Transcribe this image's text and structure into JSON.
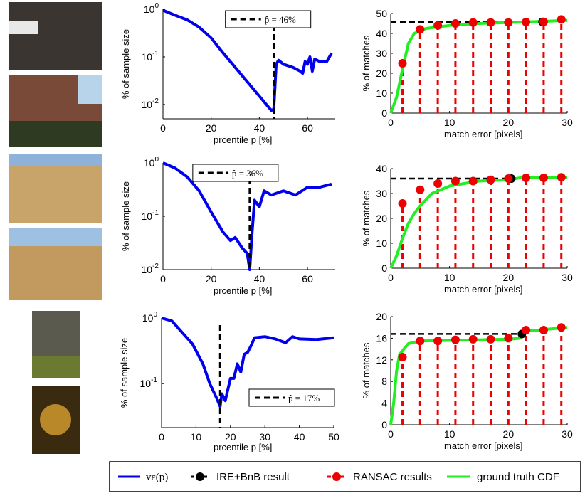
{
  "legend": {
    "items": [
      "vε(p)",
      "IRE+BnB result",
      "RANSAC results",
      "ground truth CDF"
    ]
  },
  "colors": {
    "v": "#0000ee",
    "ire": "#000000",
    "ransac": "#ee0000",
    "gt": "#22ee22"
  },
  "chart_data": [
    {
      "type": "line",
      "scale": "log",
      "xlabel": "prcentile p [%]",
      "ylabel": "% of sample size",
      "xlim": [
        0,
        71.5
      ],
      "ylim_log10": [
        -2.3,
        0
      ],
      "xticks": [
        0,
        20,
        40,
        60
      ],
      "yticks_exp": [
        0,
        -1,
        -2
      ],
      "phat": 46,
      "phat_label": "p̂ = 46%",
      "points": [
        [
          0,
          0.95
        ],
        [
          5,
          0.75
        ],
        [
          10,
          0.6
        ],
        [
          15,
          0.42
        ],
        [
          20,
          0.25
        ],
        [
          25,
          0.12
        ],
        [
          30,
          0.06
        ],
        [
          35,
          0.03
        ],
        [
          40,
          0.015
        ],
        [
          45,
          0.0075
        ],
        [
          46,
          0.008
        ],
        [
          47,
          0.07
        ],
        [
          48,
          0.085
        ],
        [
          50,
          0.07
        ],
        [
          54,
          0.06
        ],
        [
          57,
          0.05
        ],
        [
          58,
          0.045
        ],
        [
          59,
          0.08
        ],
        [
          60,
          0.07
        ],
        [
          61,
          0.1
        ],
        [
          62,
          0.05
        ],
        [
          63,
          0.09
        ],
        [
          65,
          0.08
        ],
        [
          68,
          0.08
        ],
        [
          70,
          0.12
        ]
      ]
    },
    {
      "type": "line",
      "xlabel": "match error [pixels]",
      "ylabel": "% of matches",
      "xlim": [
        0,
        30
      ],
      "ylim": [
        0,
        50
      ],
      "xticks": [
        0,
        10,
        20,
        30
      ],
      "yticks": [
        0,
        10,
        20,
        30,
        40,
        50
      ],
      "ransac_x": [
        2,
        5,
        8,
        11,
        14,
        17,
        20,
        23,
        26,
        29
      ],
      "ransac_y": [
        25,
        42,
        44,
        45,
        45.5,
        45.5,
        45.5,
        45.7,
        45.8,
        47
      ],
      "ire": [
        25.8,
        45.8
      ],
      "gt": [
        [
          0,
          0
        ],
        [
          1,
          8
        ],
        [
          2,
          22
        ],
        [
          3,
          35
        ],
        [
          4,
          40
        ],
        [
          6,
          42.5
        ],
        [
          10,
          44
        ],
        [
          15,
          45
        ],
        [
          20,
          45.5
        ],
        [
          25,
          46
        ],
        [
          30,
          46.5
        ]
      ]
    },
    {
      "type": "line",
      "scale": "log",
      "xlabel": "prcentile p [%]",
      "ylabel": "% of sample size",
      "xlim": [
        0,
        71.5
      ],
      "ylim_log10": [
        -2,
        0
      ],
      "xticks": [
        0,
        20,
        40,
        60
      ],
      "yticks_exp": [
        0,
        -1,
        -2
      ],
      "phat": 36,
      "phat_label": "p̂ = 36%",
      "points": [
        [
          0,
          1
        ],
        [
          5,
          0.8
        ],
        [
          10,
          0.55
        ],
        [
          15,
          0.3
        ],
        [
          20,
          0.12
        ],
        [
          25,
          0.05
        ],
        [
          28,
          0.035
        ],
        [
          30,
          0.04
        ],
        [
          33,
          0.025
        ],
        [
          35,
          0.02
        ],
        [
          36,
          0.01
        ],
        [
          37,
          0.05
        ],
        [
          38,
          0.2
        ],
        [
          40,
          0.15
        ],
        [
          42,
          0.3
        ],
        [
          45,
          0.25
        ],
        [
          50,
          0.3
        ],
        [
          55,
          0.25
        ],
        [
          60,
          0.35
        ],
        [
          65,
          0.35
        ],
        [
          70,
          0.4
        ]
      ]
    },
    {
      "type": "line",
      "xlabel": "match error [pixels]",
      "ylabel": "% of matches",
      "xlim": [
        0,
        30
      ],
      "ylim": [
        0,
        40
      ],
      "xticks": [
        0,
        10,
        20,
        30
      ],
      "yticks": [
        0,
        10,
        20,
        30,
        40
      ],
      "ransac_x": [
        2,
        5,
        8,
        11,
        14,
        17,
        20,
        23,
        26,
        29
      ],
      "ransac_y": [
        26,
        31.5,
        34,
        35,
        35,
        35.5,
        36,
        36.3,
        36.3,
        36.5
      ],
      "ire": [
        20.5,
        36
      ],
      "gt": [
        [
          0,
          0
        ],
        [
          1,
          5
        ],
        [
          2,
          12
        ],
        [
          3,
          18
        ],
        [
          4,
          22
        ],
        [
          5,
          25
        ],
        [
          7,
          30
        ],
        [
          10,
          33
        ],
        [
          15,
          35
        ],
        [
          20,
          35.5
        ],
        [
          22,
          36.3
        ],
        [
          30,
          36.5
        ]
      ]
    },
    {
      "type": "line",
      "scale": "log",
      "xlabel": "prcentile p [%]",
      "ylabel": "% of sample size",
      "xlim": [
        0,
        50
      ],
      "ylim_log10": [
        -1.67,
        0
      ],
      "xticks": [
        0,
        10,
        20,
        30,
        40,
        50
      ],
      "yticks_exp": [
        0,
        -1
      ],
      "phat": 17,
      "phat_label": "p̂ = 17%",
      "points": [
        [
          0,
          1
        ],
        [
          3,
          0.9
        ],
        [
          6,
          0.6
        ],
        [
          9,
          0.4
        ],
        [
          12,
          0.2
        ],
        [
          14,
          0.1
        ],
        [
          16,
          0.06
        ],
        [
          17,
          0.045
        ],
        [
          17.5,
          0.07
        ],
        [
          18.5,
          0.055
        ],
        [
          20,
          0.12
        ],
        [
          21,
          0.12
        ],
        [
          22,
          0.2
        ],
        [
          23,
          0.15
        ],
        [
          24,
          0.28
        ],
        [
          25,
          0.3
        ],
        [
          26,
          0.38
        ],
        [
          27,
          0.5
        ],
        [
          30,
          0.52
        ],
        [
          33,
          0.48
        ],
        [
          36,
          0.42
        ],
        [
          38,
          0.52
        ],
        [
          40,
          0.48
        ],
        [
          45,
          0.47
        ],
        [
          50,
          0.5
        ]
      ]
    },
    {
      "type": "line",
      "xlabel": "match error [pixels]",
      "ylabel": "% of matches",
      "xlim": [
        0,
        30
      ],
      "ylim": [
        0,
        20
      ],
      "xticks": [
        0,
        10,
        20,
        30
      ],
      "yticks": [
        0,
        4,
        8,
        12,
        16,
        20
      ],
      "ransac_x": [
        2,
        5,
        8,
        11,
        14,
        17,
        20,
        23,
        26,
        29
      ],
      "ransac_y": [
        12.5,
        15.5,
        15.5,
        15.7,
        15.8,
        15.8,
        16,
        17.5,
        17.5,
        18
      ],
      "ire": [
        22.3,
        16.8
      ],
      "gt": [
        [
          0,
          0
        ],
        [
          0.5,
          4
        ],
        [
          1,
          10
        ],
        [
          1.5,
          13
        ],
        [
          3,
          15
        ],
        [
          5,
          15.5
        ],
        [
          20,
          15.8
        ],
        [
          22,
          16
        ],
        [
          23,
          17.3
        ],
        [
          25,
          17.5
        ],
        [
          28,
          17.8
        ],
        [
          30,
          18
        ]
      ]
    }
  ]
}
